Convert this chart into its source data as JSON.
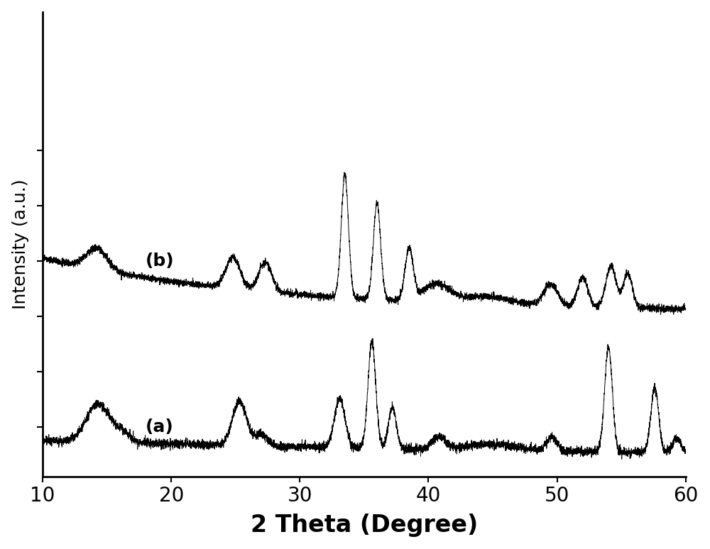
{
  "xlabel": "2 Theta (Degree)",
  "ylabel": "Intensity (a.u.)",
  "xlim": [
    10,
    60
  ],
  "x_ticks": [
    10,
    20,
    30,
    40,
    50,
    60
  ],
  "label_a": "(a)",
  "label_b": "(b)",
  "line_color": "#000000",
  "background_color": "#ffffff",
  "xlabel_fontsize": 24,
  "ylabel_fontsize": 18,
  "tick_fontsize": 20,
  "label_fontsize": 18
}
